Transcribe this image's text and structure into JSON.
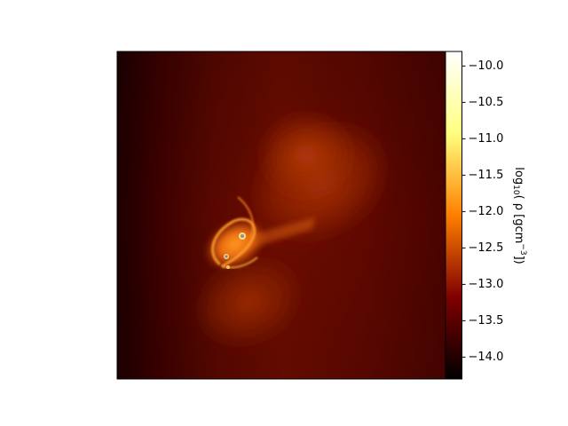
{
  "chart_data": {
    "type": "heatmap",
    "title": "",
    "xlabel": "",
    "ylabel": "",
    "x_ticks": [],
    "y_ticks": [],
    "colormap": "afmhot",
    "colorbar": {
      "label_prefix": "log",
      "label_sub": "10",
      "label_mid": "( ρ [gcm",
      "label_sup": "−3",
      "label_end": "])",
      "vmin": -14.3,
      "vmax": -9.8,
      "ticks": [
        {
          "value": -10.0,
          "label": "−10.0"
        },
        {
          "value": -10.5,
          "label": "−10.5"
        },
        {
          "value": -11.0,
          "label": "−11.0"
        },
        {
          "value": -11.5,
          "label": "−11.5"
        },
        {
          "value": -12.0,
          "label": "−12.0"
        },
        {
          "value": -12.5,
          "label": "−12.5"
        },
        {
          "value": -13.0,
          "label": "−13.0"
        },
        {
          "value": -13.5,
          "label": "−13.5"
        },
        {
          "value": -14.0,
          "label": "−14.0"
        }
      ]
    }
  }
}
